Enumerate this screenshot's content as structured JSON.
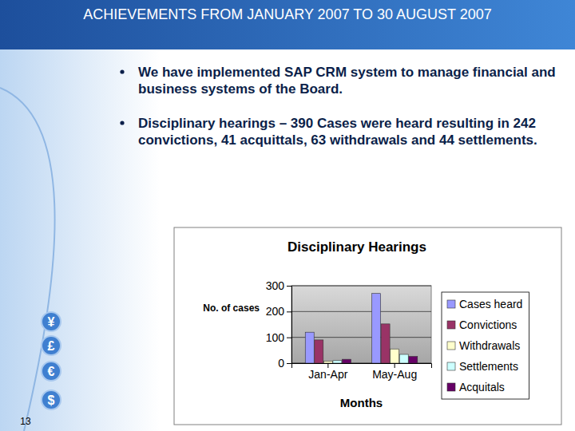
{
  "slide": {
    "title": "ACHIEVEMENTS FROM JANUARY 2007 TO 30 AUGUST 2007",
    "bullets": [
      "We have implemented SAP CRM system to manage financial and business systems of the Board.",
      "Disciplinary hearings – 390 Cases were heard resulting in 242 convictions, 41 acquittals, 63 withdrawals and 44 settlements."
    ],
    "icons": [
      "¥",
      "£",
      "€",
      "$"
    ],
    "page_number": 13
  },
  "chart_data": {
    "type": "bar",
    "title": "Disciplinary Hearings",
    "x_label": "Months",
    "y_label": "No. of cases",
    "categories": [
      "Jan-Apr",
      "May-Aug"
    ],
    "series": [
      {
        "name": "Cases heard",
        "color": "#9999ff",
        "values": [
          120,
          270
        ]
      },
      {
        "name": "Convictions",
        "color": "#993366",
        "values": [
          90,
          152
        ]
      },
      {
        "name": "Withdrawals",
        "color": "#ffffcc",
        "values": [
          8,
          55
        ]
      },
      {
        "name": "Settlements",
        "color": "#ccffff",
        "values": [
          10,
          34
        ]
      },
      {
        "name": "Acquitals",
        "color": "#660066",
        "values": [
          15,
          26
        ]
      }
    ],
    "ylim": [
      0,
      300
    ],
    "yticks": [
      0,
      100,
      200,
      300
    ],
    "grid": true,
    "legend": "right"
  }
}
